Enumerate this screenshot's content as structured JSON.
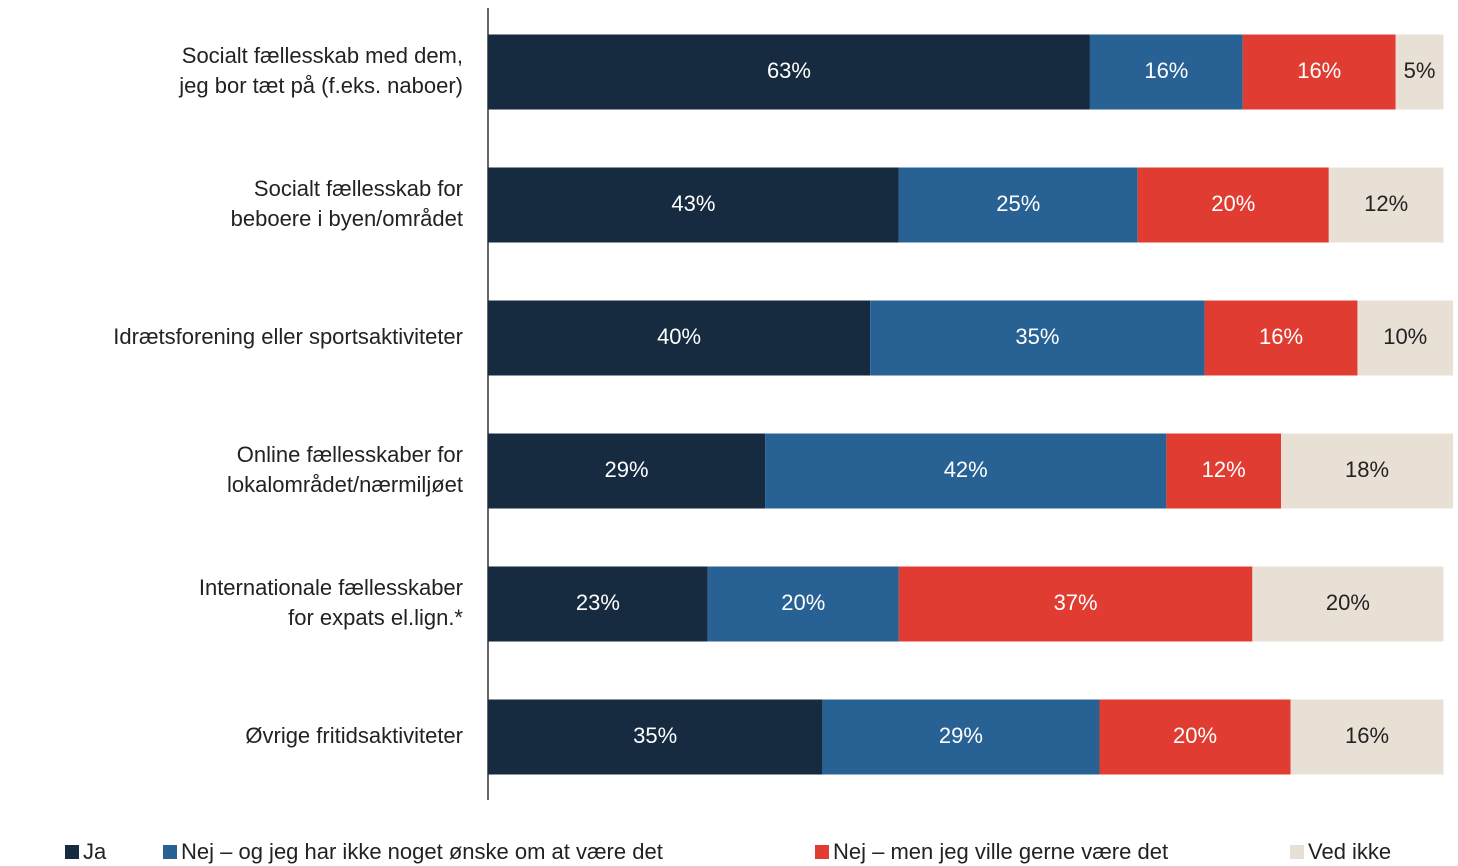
{
  "chart_data": {
    "type": "stacked_bar_horizontal",
    "categories": [
      [
        "Socialt fællesskab med dem,",
        "jeg bor tæt på (f.eks. naboer)"
      ],
      [
        "Socialt fællesskab for",
        "beboere i byen/området"
      ],
      [
        "Idrætsforening eller sportsaktiviteter"
      ],
      [
        "Online fællesskaber for",
        "lokalområdet/nærmiljøet"
      ],
      [
        "Internationale fællesskaber",
        "for expats el.lign.*"
      ],
      [
        "Øvrige fritidsaktiviteter"
      ]
    ],
    "series": [
      {
        "name": "Ja",
        "color": "#162a40",
        "text_color": "#ffffff",
        "values": [
          63,
          43,
          40,
          29,
          23,
          35
        ],
        "value_labels": [
          "63%",
          "43%",
          "40%",
          "29%",
          "23%",
          "35%"
        ]
      },
      {
        "name": "Nej – og jeg har ikke noget ønske om at være det",
        "color": "#286295",
        "text_color": "#ffffff",
        "values": [
          16,
          25,
          35,
          42,
          20,
          29
        ],
        "value_labels": [
          "16%",
          "25%",
          "35%",
          "42%",
          "20%",
          "29%"
        ]
      },
      {
        "name": "Nej – men jeg ville gerne være det",
        "color": "#e03c31",
        "text_color": "#ffffff",
        "values": [
          16,
          20,
          16,
          12,
          37,
          20
        ],
        "value_labels": [
          "16%",
          "20%",
          "16%",
          "12%",
          "37%",
          "20%"
        ]
      },
      {
        "name": "Ved ikke",
        "color": "#e8e0d4",
        "text_color": "#222222",
        "values": [
          5,
          12,
          10,
          18,
          20,
          16
        ],
        "value_labels": [
          "5%",
          "12%",
          "10%",
          "18%",
          "20%",
          "16%"
        ]
      }
    ],
    "legend": "bottom"
  }
}
